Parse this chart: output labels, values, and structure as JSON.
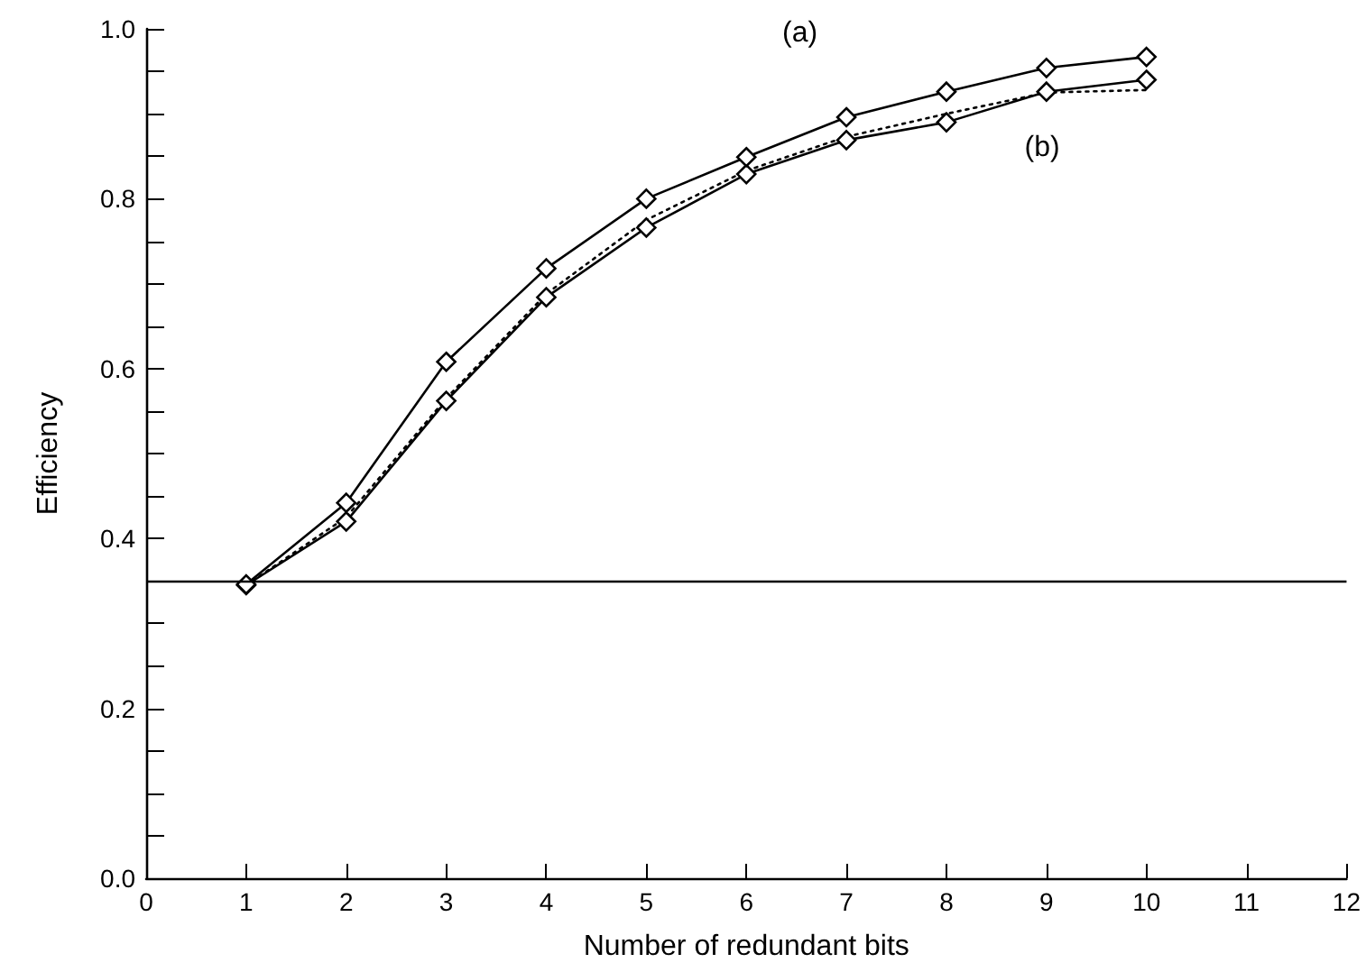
{
  "chart_data": {
    "type": "line",
    "xlabel": "Number of redundant bits",
    "ylabel": "Efficiency",
    "x": [
      1,
      2,
      3,
      4,
      5,
      6,
      7,
      8,
      9,
      10
    ],
    "series": [
      {
        "color": "#000000",
        "marker": "diamond",
        "line_style": "solid",
        "values": [
          0.346,
          0.442,
          0.608,
          0.718,
          0.8,
          0.849,
          0.896,
          0.926,
          0.954,
          0.967
        ]
      },
      {
        "color": "#000000",
        "marker": "diamond",
        "line_style": "solid",
        "values": [
          0.345,
          0.42,
          0.562,
          0.684,
          0.766,
          0.829,
          0.869,
          0.89,
          0.926,
          0.94
        ]
      },
      {
        "color": "#000000",
        "marker": "none",
        "line_style": "dotted",
        "values": [
          0.345,
          0.425,
          0.565,
          0.688,
          0.775,
          0.833,
          0.873,
          0.9,
          0.925,
          0.928
        ]
      }
    ],
    "xlim": [
      0,
      12
    ],
    "xticks": [
      0,
      1,
      2,
      3,
      4,
      5,
      6,
      7,
      8,
      9,
      10,
      11,
      12
    ],
    "ylim": [
      0,
      1
    ],
    "yticks": [
      {
        "value": 0,
        "label": "0.0"
      },
      {
        "value": 0.05,
        "label": null
      },
      {
        "value": 0.1,
        "label": null
      },
      {
        "value": 0.15,
        "label": null
      },
      {
        "value": 0.2,
        "label": "0.2"
      },
      {
        "value": 0.25,
        "label": null
      },
      {
        "value": 0.3,
        "label": null
      },
      {
        "value": 0.35,
        "label": null
      },
      {
        "value": 0.4,
        "label": "0.4"
      },
      {
        "value": 0.45,
        "label": null
      },
      {
        "value": 0.5,
        "label": null
      },
      {
        "value": 0.55,
        "label": null
      },
      {
        "value": 0.6,
        "label": "0.6"
      },
      {
        "value": 0.65,
        "label": null
      },
      {
        "value": 0.7,
        "label": null
      },
      {
        "value": 0.75,
        "label": null
      },
      {
        "value": 0.8,
        "label": "0.8"
      },
      {
        "value": 0.85,
        "label": null
      },
      {
        "value": 0.9,
        "label": null
      },
      {
        "value": 0.95,
        "label": null
      },
      {
        "value": 1,
        "label": "1.0"
      }
    ],
    "ref_lines": [
      {
        "axis": "y",
        "value": 0.35,
        "color": "#000000",
        "line_style": "solid"
      }
    ],
    "annotations": [
      "(a)",
      "(b)"
    ]
  }
}
